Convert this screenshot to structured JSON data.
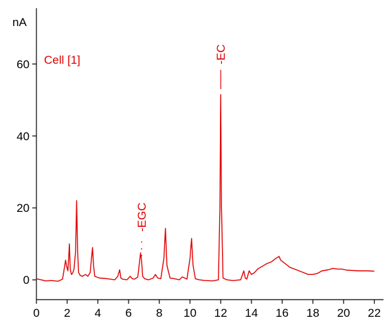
{
  "chart_data": {
    "type": "line",
    "y_unit": "nA",
    "channel_label": "Cell [1]",
    "xlim": [
      0,
      22.6
    ],
    "ylim": [
      -5.5,
      75.5
    ],
    "x_ticks": [
      0,
      2,
      4,
      6,
      8,
      10,
      12,
      14,
      16,
      18,
      20,
      22
    ],
    "y_ticks": [
      0,
      20,
      40,
      60
    ],
    "peak_labels": [
      {
        "text": "EGC",
        "x": 6.85
      },
      {
        "text": "EC",
        "x": 12.0
      }
    ],
    "colors": {
      "trace": "#e00000",
      "axes": "#000000",
      "labels": "#e00000"
    },
    "series": [
      {
        "x": [
          0,
          0.3,
          0.6,
          1.0,
          1.4,
          1.7,
          1.9,
          1.95,
          2.05,
          2.15,
          2.2,
          2.28,
          2.35,
          2.45,
          2.55,
          2.62,
          2.68,
          2.75,
          2.85,
          3.0,
          3.2,
          3.35,
          3.5,
          3.65,
          3.72,
          3.8,
          3.9,
          4.1,
          4.4,
          4.8,
          5.1,
          5.3,
          5.42,
          5.5,
          5.6,
          5.9,
          6.1,
          6.25,
          6.4,
          6.6,
          6.78,
          6.85,
          6.92,
          7.05,
          7.3,
          7.6,
          7.75,
          7.9,
          8.1,
          8.3,
          8.4,
          8.5,
          8.7,
          9.0,
          9.3,
          9.5,
          9.8,
          10.0,
          10.1,
          10.2,
          10.35,
          10.6,
          11.0,
          11.5,
          11.85,
          11.95,
          12.0,
          12.05,
          12.15,
          12.4,
          12.8,
          13.3,
          13.5,
          13.6,
          13.7,
          13.85,
          14.0,
          14.2,
          14.4,
          14.6,
          14.8,
          15.0,
          15.3,
          15.6,
          15.8,
          15.9,
          16.05,
          16.2,
          16.5,
          16.8,
          17.1,
          17.4,
          17.7,
          18.0,
          18.3,
          18.6,
          19.0,
          19.3,
          19.6,
          19.9,
          20.2,
          20.6,
          21.0,
          21.5,
          22.0
        ],
        "y": [
          0.3,
          0.0,
          -0.3,
          -0.2,
          -0.4,
          0.2,
          5.5,
          4.0,
          2.5,
          10.0,
          3.0,
          1.5,
          1.8,
          3.0,
          8.0,
          22.0,
          8.0,
          2.0,
          1.2,
          1.0,
          1.5,
          1.0,
          2.0,
          9.0,
          4.0,
          1.0,
          0.8,
          0.5,
          0.4,
          0.2,
          0.0,
          1.0,
          2.8,
          0.5,
          0.2,
          0.0,
          1.0,
          0.3,
          0.2,
          0.8,
          7.5,
          5.0,
          1.0,
          0.3,
          0.0,
          0.5,
          1.5,
          0.5,
          0.3,
          6.0,
          14.3,
          4.0,
          0.5,
          0.3,
          0.0,
          0.8,
          0.2,
          6.0,
          11.5,
          4.0,
          0.3,
          0.0,
          -0.2,
          -0.3,
          0.0,
          20.0,
          51.5,
          20.0,
          0.5,
          0.0,
          -0.2,
          0.0,
          2.5,
          0.5,
          0.2,
          2.5,
          1.5,
          2.0,
          3.0,
          3.5,
          4.0,
          4.5,
          5.0,
          6.0,
          6.5,
          5.5,
          5.0,
          4.5,
          3.5,
          3.0,
          2.5,
          2.0,
          1.5,
          1.5,
          1.8,
          2.5,
          2.8,
          3.2,
          3.0,
          3.0,
          2.7,
          2.6,
          2.5,
          2.5,
          2.4
        ]
      }
    ]
  }
}
